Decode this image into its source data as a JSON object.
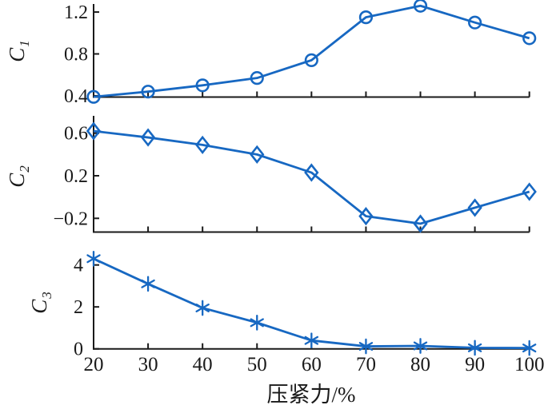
{
  "figure": {
    "xlabel": "压紧力/%",
    "x_range": [
      20,
      100
    ],
    "x_ticks": [
      20,
      30,
      40,
      50,
      60,
      70,
      80,
      90,
      100
    ],
    "x_tick_labels": [
      "20",
      "30",
      "40",
      "50",
      "60",
      "70",
      "80",
      "90",
      "100"
    ],
    "line_color": "#1768c2",
    "axis_color": "#1a1a1a",
    "background": "#ffffff",
    "marker_fill": "none",
    "grid": false,
    "legend": null
  },
  "chart_data": [
    {
      "type": "line",
      "name": "C1",
      "marker": "circle",
      "ylabel": "C",
      "ylabel_subscript": "1",
      "x": [
        20,
        30,
        40,
        50,
        60,
        70,
        80,
        90,
        100
      ],
      "y": [
        0.39,
        0.44,
        0.5,
        0.57,
        0.74,
        1.15,
        1.26,
        1.1,
        0.95
      ],
      "yticks": [
        0.4,
        0.8,
        1.2
      ],
      "ytick_labels": [
        "0.4",
        "0.8",
        "1.2"
      ],
      "ylim": [
        0.388,
        1.277
      ],
      "xlim": [
        20,
        100
      ]
    },
    {
      "type": "line",
      "name": "C2",
      "marker": "diamond",
      "ylabel": "C",
      "ylabel_subscript": "2",
      "x": [
        20,
        30,
        40,
        50,
        60,
        70,
        80,
        90,
        100
      ],
      "y": [
        0.62,
        0.56,
        0.49,
        0.4,
        0.23,
        -0.18,
        -0.25,
        -0.1,
        0.05
      ],
      "yticks": [
        0.6,
        0.2,
        -0.2
      ],
      "ytick_labels": [
        "0.6",
        "0.2",
        "−0.2"
      ],
      "ylim": [
        -0.329,
        0.763
      ],
      "xlim": [
        20,
        100
      ]
    },
    {
      "type": "line",
      "name": "C3",
      "marker": "asterisk",
      "ylabel": "C",
      "ylabel_subscript": "3",
      "x": [
        20,
        30,
        40,
        50,
        60,
        70,
        80,
        90,
        100
      ],
      "y": [
        4.3,
        3.1,
        1.95,
        1.25,
        0.4,
        0.12,
        0.14,
        0.05,
        0.04
      ],
      "yticks": [
        4,
        2,
        0
      ],
      "ytick_labels": [
        "4",
        "2",
        "0"
      ],
      "ylim": [
        0,
        4.445
      ],
      "xlim": [
        20,
        100
      ]
    }
  ]
}
